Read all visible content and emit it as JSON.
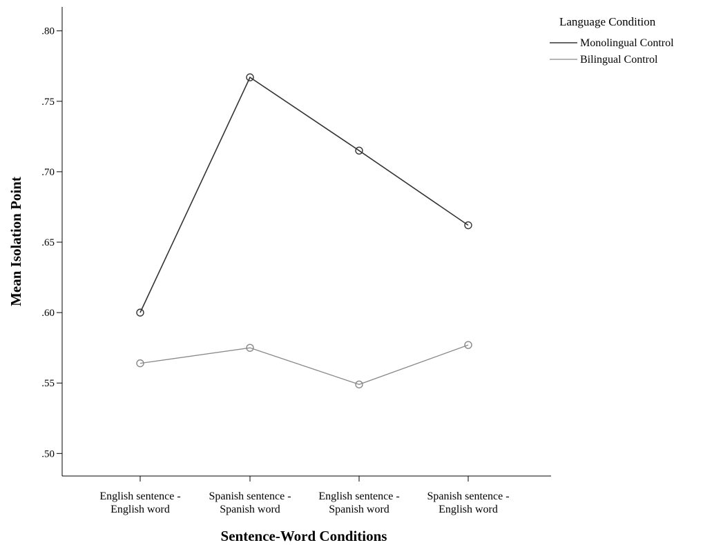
{
  "chart_data": {
    "type": "line",
    "xlabel": "Sentence-Word Conditions",
    "ylabel": "Mean Isolation Point",
    "categories": [
      [
        "English sentence -",
        "English word"
      ],
      [
        "Spanish sentence -",
        "Spanish word"
      ],
      [
        "English sentence -",
        "Spanish word"
      ],
      [
        "Spanish sentence -",
        "English word"
      ]
    ],
    "yticks": [
      ".50",
      ".55",
      ".60",
      ".65",
      ".70",
      ".75",
      ".80"
    ],
    "ytick_values": [
      0.5,
      0.55,
      0.6,
      0.65,
      0.7,
      0.75,
      0.8
    ],
    "ylim": [
      0.484,
      0.817
    ],
    "legend": {
      "title": "Language Condition",
      "placement": "top-right"
    },
    "series": [
      {
        "name": "Monolingual Control",
        "color": "#333333",
        "values": [
          0.6,
          0.767,
          0.715,
          0.662
        ]
      },
      {
        "name": "Bilingual Control",
        "color": "#888888",
        "values": [
          0.564,
          0.575,
          0.549,
          0.577
        ]
      }
    ],
    "grid": false
  }
}
